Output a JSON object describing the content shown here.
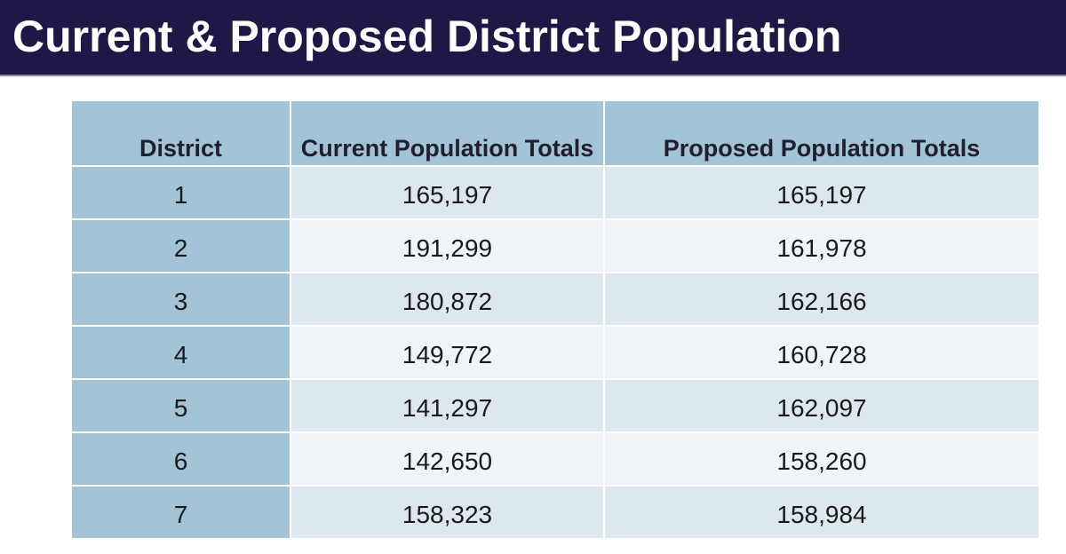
{
  "title": "Current & Proposed District Population",
  "table": {
    "headers": {
      "district": "District",
      "current": "Current Population Totals",
      "proposed": "Proposed Population Totals"
    },
    "rows": [
      {
        "district": "1",
        "current": "165,197",
        "proposed": "165,197"
      },
      {
        "district": "2",
        "current": "191,299",
        "proposed": "161,978"
      },
      {
        "district": "3",
        "current": "180,872",
        "proposed": "162,166"
      },
      {
        "district": "4",
        "current": "149,772",
        "proposed": "160,728"
      },
      {
        "district": "5",
        "current": "141,297",
        "proposed": "162,097"
      },
      {
        "district": "6",
        "current": "142,650",
        "proposed": "158,260"
      },
      {
        "district": "7",
        "current": "158,323",
        "proposed": "158,984"
      }
    ]
  },
  "colors": {
    "title_bar": "#1d1846",
    "header_fill": "#a3c4d6",
    "row_dark": "#dde7ee",
    "row_light": "#eef4f7"
  }
}
